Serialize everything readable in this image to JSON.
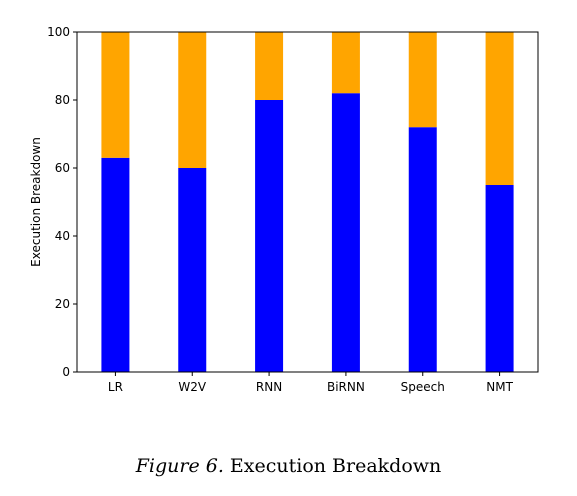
{
  "caption": {
    "figure_label": "Figure 6.",
    "text": "Execution Breakdown"
  },
  "chart_data": {
    "type": "bar",
    "stacked": true,
    "title": "",
    "xlabel": "",
    "ylabel": "Execution Breakdown",
    "categories": [
      "LR",
      "W2V",
      "RNN",
      "BiRNN",
      "Speech",
      "NMT"
    ],
    "series": [
      {
        "values": [
          63,
          60,
          80,
          82,
          72,
          55
        ],
        "color": "#0000ff"
      },
      {
        "values": [
          37,
          40,
          20,
          18,
          28,
          45
        ],
        "color": "#ffa500"
      }
    ],
    "ylim": [
      0,
      100
    ],
    "yticks": [
      0,
      20,
      40,
      60,
      80,
      100
    ],
    "grid": false,
    "legend": "none"
  }
}
